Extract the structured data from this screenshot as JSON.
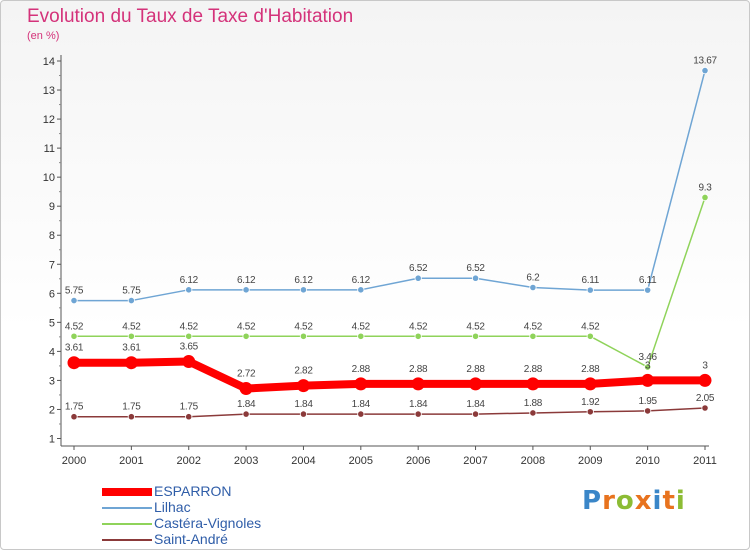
{
  "title": "Evolution du Taux de Taxe d'Habitation",
  "subtitle": "(en %)",
  "logo": {
    "text": "Proxiti",
    "colors": [
      "#3a86c8",
      "#e8731e",
      "#8cbc34",
      "#e8731e",
      "#3a86c8",
      "#e8731e",
      "#8cbc34"
    ]
  },
  "chart_data": {
    "type": "line",
    "title": "Evolution du Taux de Taxe d'Habitation",
    "ylabel": "(en %)",
    "xlabel": "",
    "ylim": [
      0.5,
      14.3
    ],
    "yticks": [
      1,
      2,
      3,
      4,
      5,
      6,
      7,
      8,
      9,
      10,
      11,
      12,
      13,
      14
    ],
    "categories": [
      "2000",
      "2001",
      "2002",
      "2003",
      "2004",
      "2005",
      "2006",
      "2007",
      "2008",
      "2009",
      "2010",
      "2011"
    ],
    "series": [
      {
        "name": "ESPARRON",
        "color": "#ff0000",
        "values": [
          3.61,
          3.61,
          3.65,
          2.72,
          2.82,
          2.88,
          2.88,
          2.88,
          2.88,
          2.88,
          3,
          3
        ],
        "labels": [
          "3.61",
          "3.61",
          "3.65",
          "2.72",
          "2.82",
          "2.88",
          "2.88",
          "2.88",
          "2.88",
          "2.88",
          "3",
          "3"
        ]
      },
      {
        "name": "Lilhac",
        "color": "#6fa5d4",
        "values": [
          5.75,
          5.75,
          6.12,
          6.12,
          6.12,
          6.12,
          6.52,
          6.52,
          6.2,
          6.11,
          6.11,
          13.67
        ],
        "labels": [
          "5.75",
          "5.75",
          "6.12",
          "6.12",
          "6.12",
          "6.12",
          "6.52",
          "6.52",
          "6.2",
          "6.11",
          "6.11",
          "13.67"
        ]
      },
      {
        "name": "Castéra-Vignoles",
        "color": "#8fd35a",
        "values": [
          4.52,
          4.52,
          4.52,
          4.52,
          4.52,
          4.52,
          4.52,
          4.52,
          4.52,
          4.52,
          3.46,
          9.3
        ],
        "labels": [
          "4.52",
          "4.52",
          "4.52",
          "4.52",
          "4.52",
          "4.52",
          "4.52",
          "4.52",
          "4.52",
          "4.52",
          "3.46",
          "9.3"
        ]
      },
      {
        "name": "Saint-André",
        "color": "#8b3a3a",
        "values": [
          1.75,
          1.75,
          1.75,
          1.84,
          1.84,
          1.84,
          1.84,
          1.84,
          1.88,
          1.92,
          1.95,
          2.05
        ],
        "labels": [
          "1.75",
          "1.75",
          "1.75",
          "1.84",
          "1.84",
          "1.84",
          "1.84",
          "1.84",
          "1.88",
          "1.92",
          "1.95",
          "2.05"
        ]
      }
    ]
  }
}
